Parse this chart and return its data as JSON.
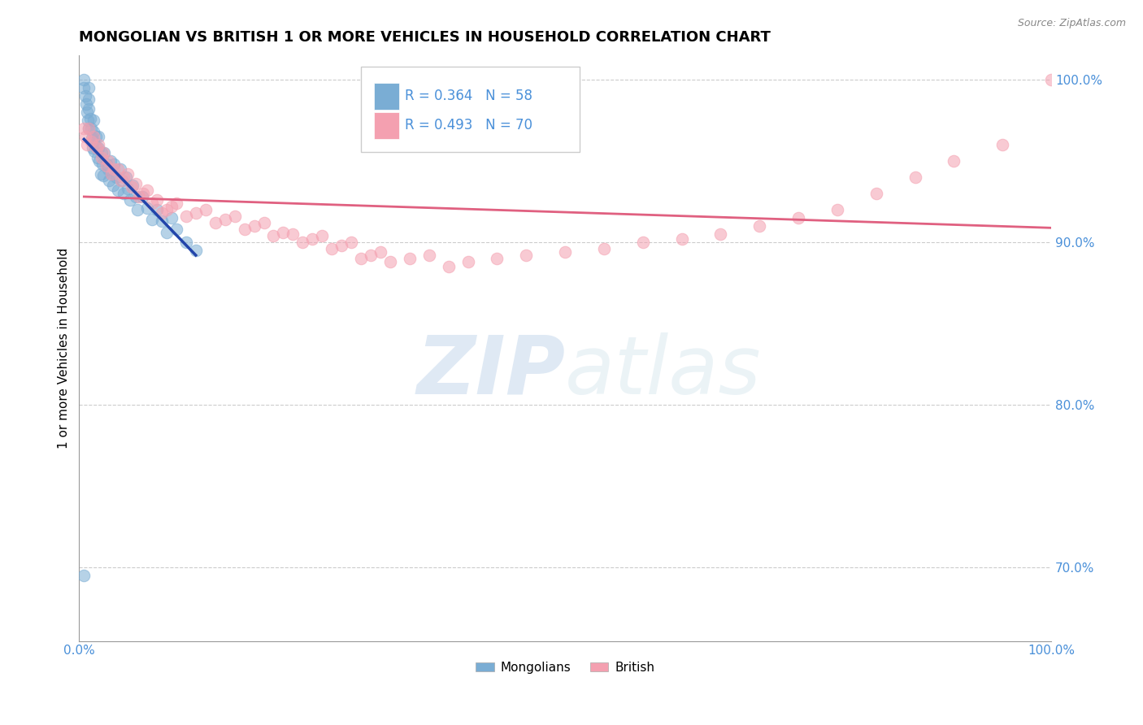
{
  "title": "MONGOLIAN VS BRITISH 1 OR MORE VEHICLES IN HOUSEHOLD CORRELATION CHART",
  "source": "Source: ZipAtlas.com",
  "ylabel": "1 or more Vehicles in Household",
  "xlim": [
    0.0,
    1.0
  ],
  "ylim": [
    0.655,
    1.015
  ],
  "x_tick_positions": [
    0.0,
    0.1,
    0.2,
    0.3,
    0.4,
    0.5,
    0.6,
    0.7,
    0.8,
    0.9,
    1.0
  ],
  "x_tick_labels": [
    "0.0%",
    "",
    "",
    "",
    "",
    "",
    "",
    "",
    "",
    "",
    "100.0%"
  ],
  "y_ticks": [
    0.7,
    0.8,
    0.9,
    1.0
  ],
  "y_tick_labels": [
    "70.0%",
    "80.0%",
    "90.0%",
    "100.0%"
  ],
  "mongolian_R": 0.364,
  "mongolian_N": 58,
  "british_R": 0.493,
  "british_N": 70,
  "mongolian_color": "#7aadd4",
  "british_color": "#f4a0b0",
  "mongolian_line_color": "#2244aa",
  "british_line_color": "#e06080",
  "watermark_zip": "ZIP",
  "watermark_atlas": "atlas",
  "mongolian_x": [
    0.005,
    0.005,
    0.006,
    0.007,
    0.008,
    0.009,
    0.01,
    0.01,
    0.01,
    0.01,
    0.011,
    0.012,
    0.013,
    0.014,
    0.015,
    0.015,
    0.015,
    0.016,
    0.017,
    0.018,
    0.019,
    0.02,
    0.02,
    0.021,
    0.022,
    0.023,
    0.024,
    0.025,
    0.026,
    0.028,
    0.03,
    0.031,
    0.032,
    0.033,
    0.035,
    0.036,
    0.038,
    0.04,
    0.042,
    0.044,
    0.046,
    0.048,
    0.05,
    0.052,
    0.055,
    0.058,
    0.06,
    0.065,
    0.07,
    0.075,
    0.08,
    0.085,
    0.09,
    0.095,
    0.1,
    0.11,
    0.12,
    0.005
  ],
  "mongolian_y": [
    1.0,
    0.995,
    0.99,
    0.985,
    0.98,
    0.975,
    0.97,
    0.995,
    0.988,
    0.982,
    0.976,
    0.97,
    0.964,
    0.958,
    0.975,
    0.968,
    0.962,
    0.956,
    0.965,
    0.958,
    0.952,
    0.965,
    0.958,
    0.95,
    0.942,
    0.955,
    0.948,
    0.941,
    0.955,
    0.948,
    0.945,
    0.938,
    0.95,
    0.942,
    0.935,
    0.948,
    0.94,
    0.932,
    0.945,
    0.938,
    0.93,
    0.94,
    0.933,
    0.926,
    0.935,
    0.928,
    0.92,
    0.928,
    0.921,
    0.914,
    0.92,
    0.913,
    0.906,
    0.915,
    0.908,
    0.9,
    0.895,
    0.695
  ],
  "british_x": [
    0.005,
    0.006,
    0.008,
    0.01,
    0.012,
    0.015,
    0.018,
    0.02,
    0.023,
    0.025,
    0.028,
    0.03,
    0.033,
    0.036,
    0.04,
    0.043,
    0.046,
    0.05,
    0.054,
    0.058,
    0.062,
    0.066,
    0.07,
    0.075,
    0.08,
    0.085,
    0.09,
    0.095,
    0.1,
    0.11,
    0.12,
    0.13,
    0.14,
    0.15,
    0.16,
    0.17,
    0.18,
    0.19,
    0.2,
    0.21,
    0.22,
    0.23,
    0.24,
    0.25,
    0.26,
    0.27,
    0.28,
    0.29,
    0.3,
    0.31,
    0.32,
    0.34,
    0.36,
    0.38,
    0.4,
    0.43,
    0.46,
    0.5,
    0.54,
    0.58,
    0.62,
    0.66,
    0.7,
    0.74,
    0.78,
    0.82,
    0.86,
    0.9,
    0.95,
    1.0
  ],
  "british_y": [
    0.97,
    0.965,
    0.96,
    0.97,
    0.962,
    0.965,
    0.958,
    0.96,
    0.952,
    0.955,
    0.947,
    0.95,
    0.942,
    0.945,
    0.945,
    0.938,
    0.94,
    0.942,
    0.934,
    0.936,
    0.928,
    0.93,
    0.932,
    0.924,
    0.926,
    0.918,
    0.92,
    0.922,
    0.924,
    0.916,
    0.918,
    0.92,
    0.912,
    0.914,
    0.916,
    0.908,
    0.91,
    0.912,
    0.904,
    0.906,
    0.905,
    0.9,
    0.902,
    0.904,
    0.896,
    0.898,
    0.9,
    0.89,
    0.892,
    0.894,
    0.888,
    0.89,
    0.892,
    0.885,
    0.888,
    0.89,
    0.892,
    0.894,
    0.896,
    0.9,
    0.902,
    0.905,
    0.91,
    0.915,
    0.92,
    0.93,
    0.94,
    0.95,
    0.96,
    1.0
  ]
}
